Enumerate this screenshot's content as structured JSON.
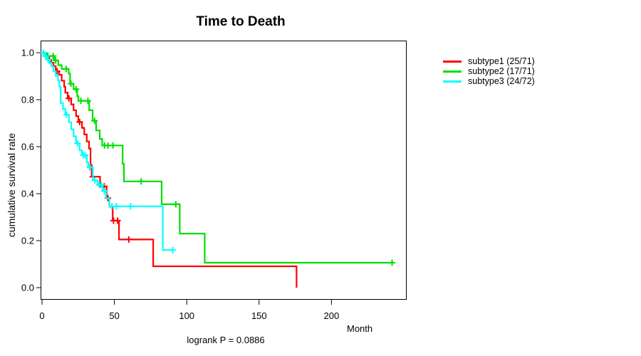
{
  "chart_data": {
    "type": "line",
    "variant": "kaplan-meier-step-survival",
    "title": "Time to Death",
    "xlabel": "Month",
    "ylabel": "cumulative survival rate",
    "annotation": "logrank P = 0.0886",
    "grid": false,
    "legend_position": "right-outside",
    "x_ticks": [
      0,
      50,
      100,
      150,
      200
    ],
    "y_ticks": [
      0.0,
      0.2,
      0.4,
      0.6,
      0.8,
      1.0
    ],
    "xlim": [
      0,
      252
    ],
    "ylim": [
      0.0,
      1.0
    ],
    "series": [
      {
        "name": "subtype1",
        "label": "subtype1 (25/71)",
        "color": "#FF0000",
        "points": [
          [
            0,
            1.0
          ],
          [
            1,
            0.986
          ],
          [
            5,
            0.971
          ],
          [
            6.3,
            0.957
          ],
          [
            7.9,
            0.943
          ],
          [
            9.5,
            0.921
          ],
          [
            11.8,
            0.906
          ],
          [
            13.6,
            0.881
          ],
          [
            15.3,
            0.855
          ],
          [
            16.1,
            0.83
          ],
          [
            17.7,
            0.805
          ],
          [
            20.2,
            0.78
          ],
          [
            21.8,
            0.755
          ],
          [
            23.5,
            0.73
          ],
          [
            25.1,
            0.705
          ],
          [
            27.6,
            0.68
          ],
          [
            29.2,
            0.652
          ],
          [
            30.9,
            0.622
          ],
          [
            32.5,
            0.592
          ],
          [
            33.5,
            0.522
          ],
          [
            34.3,
            0.472
          ],
          [
            40.1,
            0.431
          ],
          [
            44.6,
            0.381
          ],
          [
            46.5,
            0.345
          ],
          [
            48.8,
            0.285
          ],
          [
            53.2,
            0.205
          ],
          [
            76.8,
            0.091
          ],
          [
            175.9,
            0.0
          ]
        ],
        "censors": [
          [
            3.6,
            0.986
          ],
          [
            10.5,
            0.921
          ],
          [
            18.6,
            0.805
          ],
          [
            26.0,
            0.705
          ],
          [
            35.1,
            0.472
          ],
          [
            43.0,
            0.431
          ],
          [
            45.5,
            0.381
          ],
          [
            49.4,
            0.285
          ],
          [
            52.2,
            0.285
          ],
          [
            60.0,
            0.205
          ]
        ]
      },
      {
        "name": "subtype2",
        "label": "subtype2 (17/71)",
        "color": "#00DF00",
        "points": [
          [
            0,
            1.0
          ],
          [
            3,
            0.986
          ],
          [
            8.5,
            0.967
          ],
          [
            11.2,
            0.947
          ],
          [
            13.6,
            0.931
          ],
          [
            18.4,
            0.911
          ],
          [
            19.4,
            0.868
          ],
          [
            21.8,
            0.845
          ],
          [
            24.3,
            0.815
          ],
          [
            25.1,
            0.795
          ],
          [
            32.6,
            0.755
          ],
          [
            35.0,
            0.71
          ],
          [
            37.4,
            0.669
          ],
          [
            39.9,
            0.633
          ],
          [
            41.6,
            0.605
          ],
          [
            55.7,
            0.527
          ],
          [
            56.6,
            0.452
          ],
          [
            82.7,
            0.355
          ],
          [
            95.2,
            0.23
          ],
          [
            112.4,
            0.106
          ],
          [
            242.5,
            0.106
          ]
        ],
        "censors": [
          [
            4.0,
            0.986
          ],
          [
            7.7,
            0.986
          ],
          [
            9.4,
            0.967
          ],
          [
            16.7,
            0.931
          ],
          [
            20.0,
            0.868
          ],
          [
            23.5,
            0.845
          ],
          [
            26.8,
            0.795
          ],
          [
            31.7,
            0.795
          ],
          [
            36.3,
            0.71
          ],
          [
            43.2,
            0.605
          ],
          [
            45.5,
            0.605
          ],
          [
            49.0,
            0.605
          ],
          [
            68.5,
            0.452
          ],
          [
            92.4,
            0.355
          ],
          [
            241.9,
            0.106
          ]
        ]
      },
      {
        "name": "subtype3",
        "label": "subtype3 (24/72)",
        "color": "#00FFFF",
        "points": [
          [
            0,
            1.0
          ],
          [
            1.5,
            0.986
          ],
          [
            3.5,
            0.971
          ],
          [
            5.0,
            0.956
          ],
          [
            6.5,
            0.941
          ],
          [
            8.0,
            0.921
          ],
          [
            9.5,
            0.901
          ],
          [
            11.0,
            0.881
          ],
          [
            12.0,
            0.856
          ],
          [
            12.9,
            0.786
          ],
          [
            14.4,
            0.761
          ],
          [
            16.1,
            0.736
          ],
          [
            18.6,
            0.704
          ],
          [
            20.2,
            0.674
          ],
          [
            21.8,
            0.644
          ],
          [
            23.5,
            0.614
          ],
          [
            26.0,
            0.584
          ],
          [
            27.6,
            0.564
          ],
          [
            30.9,
            0.534
          ],
          [
            31.9,
            0.512
          ],
          [
            35.1,
            0.457
          ],
          [
            38.5,
            0.437
          ],
          [
            42.0,
            0.411
          ],
          [
            44.2,
            0.38
          ],
          [
            46.5,
            0.346
          ],
          [
            83.4,
            0.16
          ],
          [
            91.0,
            0.16
          ]
        ],
        "censors": [
          [
            1.0,
            1.0
          ],
          [
            2.5,
            0.986
          ],
          [
            4.2,
            0.971
          ],
          [
            17.0,
            0.736
          ],
          [
            24.5,
            0.614
          ],
          [
            28.5,
            0.564
          ],
          [
            29.8,
            0.564
          ],
          [
            33.0,
            0.512
          ],
          [
            36.5,
            0.457
          ],
          [
            39.5,
            0.437
          ],
          [
            41.0,
            0.437
          ],
          [
            43.0,
            0.411
          ],
          [
            48.3,
            0.346
          ],
          [
            51.4,
            0.346
          ],
          [
            61.2,
            0.346
          ],
          [
            90.3,
            0.16
          ]
        ]
      }
    ]
  }
}
